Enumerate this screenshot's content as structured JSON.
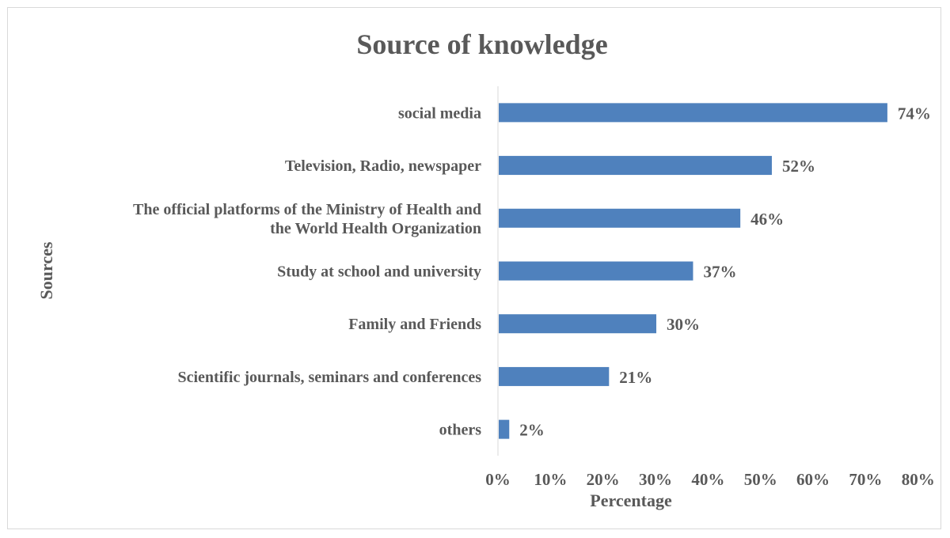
{
  "chart_data": {
    "type": "bar",
    "orientation": "horizontal",
    "title": "Source of knowledge",
    "xlabel": "Percentage",
    "ylabel": "Sources",
    "categories": [
      "social media",
      "Television, Radio, newspaper",
      [
        "The official platforms of the Ministry of Health and",
        "the World Health Organization"
      ],
      "Study at school and university",
      "Family and Friends",
      "Scientific journals, seminars and conferences",
      "others"
    ],
    "values": [
      74,
      52,
      46,
      37,
      30,
      21,
      2
    ],
    "data_labels": [
      "74%",
      "52%",
      "46%",
      "37%",
      "30%",
      "21%",
      "2%"
    ],
    "xlim": [
      0,
      80
    ],
    "xticks": [
      0,
      10,
      20,
      30,
      40,
      50,
      60,
      70,
      80
    ],
    "xtick_labels": [
      "0%",
      "10%",
      "20%",
      "30%",
      "40%",
      "50%",
      "60%",
      "70%",
      "80%"
    ],
    "grid": false,
    "legend": "none",
    "bar_color": "#4f81bd",
    "text_color": "#595959",
    "axis_color": "#d9d9d9"
  }
}
